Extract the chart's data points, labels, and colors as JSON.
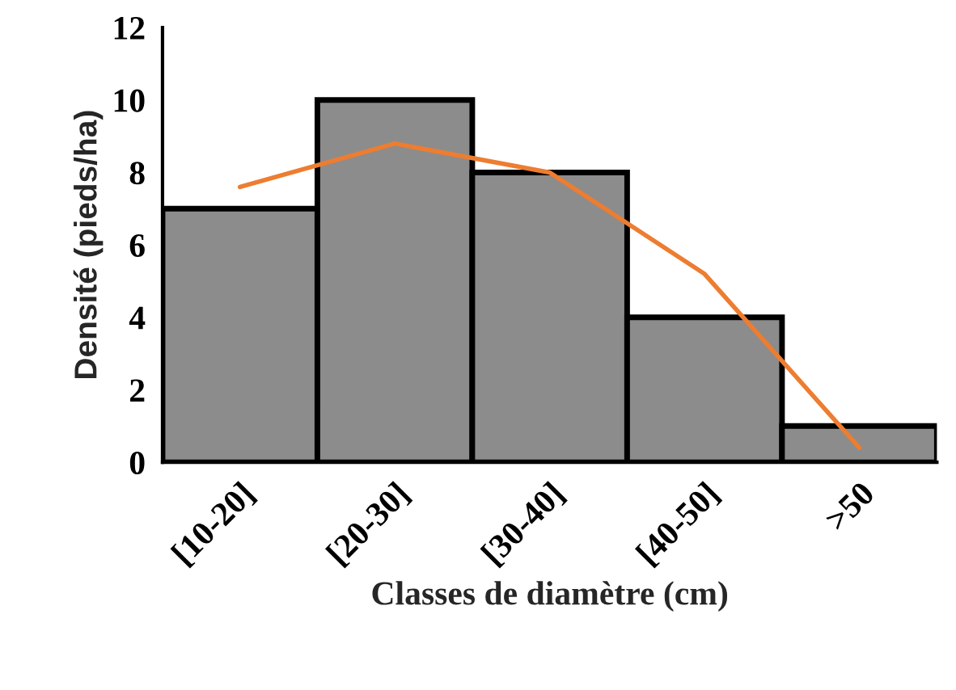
{
  "chart_data": {
    "type": "bar",
    "xlabel": "Classes de diamètre (cm)",
    "ylabel": "Densité (pieds/ha)",
    "categories": [
      "[10-20]",
      "[20-30]",
      "[30-40]",
      "[40-50]",
      ">50"
    ],
    "series": [
      {
        "color": "#8c8c8c",
        "values": [
          7,
          10,
          8,
          4,
          1
        ]
      },
      {
        "type": "line",
        "color": "#ed7d31",
        "values": [
          7.6,
          8.8,
          8.0,
          5.2,
          0.4
        ]
      }
    ],
    "ylim": [
      0,
      12
    ],
    "yticks": [
      0,
      2,
      4,
      6,
      8,
      10,
      12
    ],
    "grid": false,
    "legend": false
  }
}
